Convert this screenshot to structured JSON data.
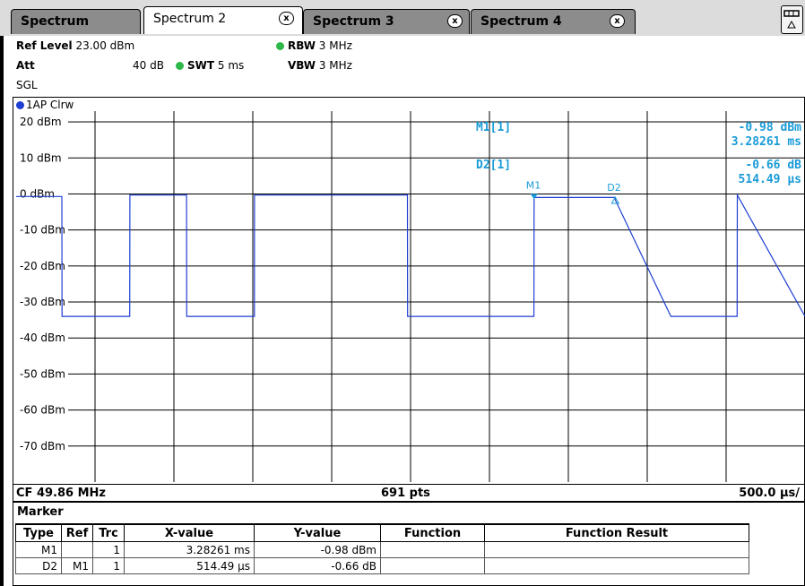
{
  "tabs": [
    {
      "label": "Spectrum",
      "active": false,
      "closable": false
    },
    {
      "label": "Spectrum 2",
      "active": true,
      "closable": true
    },
    {
      "label": "Spectrum 3",
      "active": false,
      "closable": true
    },
    {
      "label": "Spectrum 4",
      "active": false,
      "closable": true
    }
  ],
  "close_glyph": "x",
  "header": {
    "ref_level_label": "Ref Level",
    "ref_level_value": "23.00 dBm",
    "att_label": "Att",
    "att_value": "40 dB",
    "swt_label": "SWT",
    "swt_value": "5 ms",
    "rbw_label": "RBW",
    "rbw_value": "3 MHz",
    "vbw_label": "VBW",
    "vbw_value": "3 MHz",
    "mode": "SGL"
  },
  "trace": {
    "label": "1AP Clrw",
    "color": "#1f3fd2"
  },
  "chart_data": {
    "type": "line",
    "title": "",
    "y_tick_labels": [
      "20 dBm",
      "10 dBm",
      "0 dBm",
      "-10 dBm",
      "-20 dBm",
      "-30 dBm",
      "-40 dBm",
      "-50 dBm",
      "-60 dBm",
      "-70 dBm"
    ],
    "y_ticks": [
      20,
      10,
      0,
      -10,
      -20,
      -30,
      -40,
      -50,
      -60,
      -70
    ],
    "ylim": [
      -80,
      23
    ],
    "xlim": [
      0,
      5000
    ],
    "x_unit": "µs",
    "grid": true,
    "series": [
      {
        "x": [
          0,
          290,
          291,
          720,
          721,
          1080,
          1081,
          1510,
          1511,
          2480,
          2481,
          3282,
          3283,
          3796,
          3797,
          4150,
          4151,
          4570,
          4571,
          5000
        ],
        "y": [
          -0.7,
          -0.7,
          -34,
          -34,
          -0.3,
          -0.3,
          -34,
          -34,
          -0.3,
          -0.3,
          -34,
          -34,
          -0.98,
          -0.98,
          -1.64,
          -34,
          -34,
          -34,
          -0.3,
          -34
        ]
      }
    ],
    "markers": [
      {
        "name": "M1",
        "x": 3282.61,
        "y": -0.98
      },
      {
        "name": "D2",
        "x": 3797.1,
        "y": -1.64
      }
    ]
  },
  "marker_readout": [
    {
      "label": "M1[1]",
      "value": "-0.98 dBm",
      "sub": "3.28261 ms"
    },
    {
      "label": "D2[1]",
      "value": "-0.66 dB",
      "sub": "514.49 µs"
    }
  ],
  "footer": {
    "cf": "CF 49.86 MHz",
    "pts": "691 pts",
    "span": "500.0 µs/"
  },
  "marker_table": {
    "title": "Marker",
    "headers": [
      "Type",
      "Ref",
      "Trc",
      "X-value",
      "Y-value",
      "Function",
      "Function Result"
    ],
    "rows": [
      [
        "M1",
        "",
        "1",
        "3.28261 ms",
        "-0.98 dBm",
        "",
        ""
      ],
      [
        "D2",
        "M1",
        "1",
        "514.49 µs",
        "-0.66 dB",
        "",
        ""
      ]
    ]
  },
  "colors": {
    "trace": "#1f3fd2",
    "marker_text": "#1a9bd7",
    "grid": "#000000",
    "led": "#2db84a"
  }
}
